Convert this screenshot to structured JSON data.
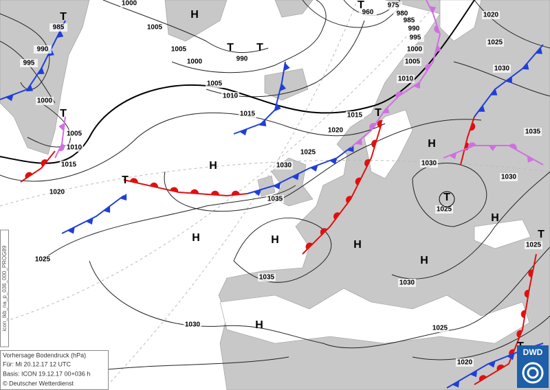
{
  "isobar_labels": [
    "1000",
    "1005",
    "985",
    "990",
    "995",
    "1005",
    "1000",
    "990",
    "960",
    "975",
    "980",
    "985",
    "990",
    "995",
    "1000",
    "1005",
    "1010",
    "1005",
    "1010",
    "1015",
    "1000",
    "1005",
    "1010",
    "1015",
    "1020",
    "1020",
    "1015",
    "1025",
    "1030",
    "1035",
    "1020",
    "1025",
    "1030",
    "1035",
    "1030",
    "1030",
    "1025",
    "1025",
    "1030",
    "1035",
    "1025",
    "1030",
    "1025",
    "1020"
  ],
  "pressure_centers": [
    "T",
    "T",
    "T",
    "T",
    "T",
    "T",
    "T",
    "T",
    "T",
    "T",
    "H",
    "H",
    "H",
    "H",
    "H",
    "H",
    "H",
    "H",
    "H"
  ],
  "legend": {
    "title": "Vorhersage Bodendruck (hPa)",
    "valid": "Für:  Mi 20.12.17  12 UTC",
    "base": "Basis: ICON  19.12.17 00+036 h",
    "copyright": "© Deutscher Wetterdienst"
  },
  "product_code": "icon_tkb_na_p_036_000_PROG89",
  "logo": "DWD"
}
